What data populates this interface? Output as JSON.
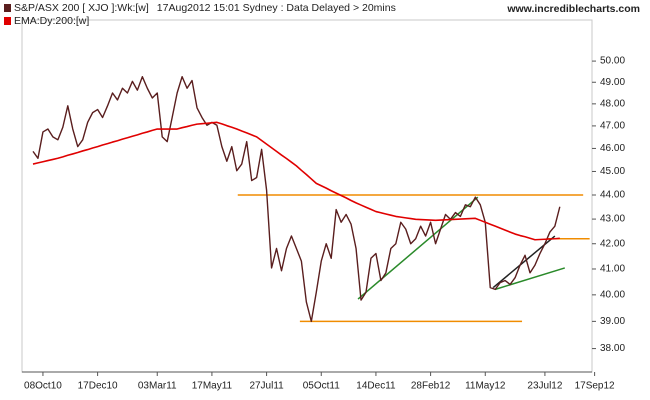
{
  "chart_data": {
    "type": "line",
    "subtitle": "17Aug2012 15:01 Sydney : Data Delayed > 20mins",
    "source": "www.incrediblecharts.com",
    "log_scale": true,
    "grid": false,
    "categories": [
      null,
      null,
      "08Oct10",
      null,
      null,
      null,
      null,
      null,
      null,
      null,
      null,
      null,
      null,
      "17Dec10",
      null,
      null,
      null,
      null,
      null,
      null,
      null,
      null,
      null,
      null,
      null,
      "03Mar11",
      null,
      null,
      null,
      null,
      null,
      null,
      null,
      null,
      null,
      null,
      "17May11",
      null,
      null,
      null,
      null,
      null,
      null,
      null,
      null,
      null,
      null,
      "27Jul11",
      null,
      null,
      null,
      null,
      null,
      null,
      null,
      null,
      null,
      null,
      "05Oct11",
      null,
      null,
      null,
      null,
      null,
      null,
      null,
      null,
      null,
      null,
      "14Dec11",
      null,
      null,
      null,
      null,
      null,
      null,
      null,
      null,
      null,
      null,
      "28Feb12",
      null,
      null,
      null,
      null,
      null,
      null,
      null,
      null,
      null,
      null,
      "11May12",
      null,
      null,
      null,
      null,
      null,
      null,
      null,
      null,
      null,
      null,
      null,
      "23Jul12",
      null,
      null,
      null,
      null,
      null,
      null,
      null,
      null,
      null,
      "17Sep12"
    ],
    "series": [
      {
        "name": "S&P/ASX 200 [ XJO ]:Wk:[w]",
        "color": "#5a1e1e",
        "values": [
          45.87,
          45.57,
          46.73,
          46.86,
          46.51,
          46.38,
          46.94,
          47.91,
          46.86,
          46.08,
          46.38,
          47.16,
          47.6,
          47.74,
          47.38,
          47.91,
          48.5,
          48.18,
          48.72,
          48.5,
          49.04,
          48.63,
          49.26,
          48.72,
          48.27,
          48.5,
          46.51,
          46.3,
          47.38,
          48.5,
          49.26,
          48.72,
          49.08,
          47.82,
          47.38,
          47.03,
          47.16,
          47.03,
          46.08,
          45.44,
          46.08,
          45.03,
          45.32,
          46.3,
          44.61,
          44.74,
          45.96,
          44.2,
          41.04,
          41.81,
          40.93,
          41.81,
          42.31,
          41.81,
          41.31,
          39.73,
          39.0,
          40.1,
          41.31,
          42.0,
          41.42,
          43.39,
          42.87,
          43.19,
          42.79,
          41.81,
          39.8,
          40.1,
          41.42,
          41.61,
          40.55,
          40.85,
          41.81,
          42.0,
          42.87,
          42.59,
          42.0,
          42.2,
          42.71,
          42.31,
          42.87,
          42.0,
          42.59,
          43.19,
          42.99,
          43.27,
          43.11,
          43.59,
          43.51,
          43.91,
          43.59,
          42.87,
          40.28,
          40.21,
          40.47,
          40.55,
          40.4,
          40.66,
          41.15,
          41.54,
          40.85,
          41.15,
          41.61,
          42.0,
          42.47,
          42.71,
          43.51,
          null,
          null,
          null,
          null,
          null,
          null,
          null
        ]
      },
      {
        "name": "EMA:Dy:200:[w]",
        "color": "#e00000",
        "values": [
          45.32,
          45.37,
          45.42,
          45.47,
          45.52,
          45.57,
          45.63,
          45.7,
          45.76,
          45.82,
          45.89,
          45.95,
          46.02,
          46.08,
          46.15,
          46.21,
          46.28,
          46.34,
          46.41,
          46.47,
          46.54,
          46.6,
          46.67,
          46.73,
          46.8,
          46.86,
          46.86,
          46.86,
          46.86,
          46.86,
          46.92,
          46.97,
          47.03,
          47.08,
          47.1,
          47.12,
          47.14,
          47.16,
          47.09,
          47.01,
          46.94,
          46.86,
          46.77,
          46.69,
          46.6,
          46.51,
          46.35,
          46.19,
          46.03,
          45.87,
          45.71,
          45.56,
          45.4,
          45.24,
          45.05,
          44.87,
          44.68,
          44.49,
          44.39,
          44.29,
          44.18,
          44.08,
          43.98,
          43.88,
          43.77,
          43.67,
          43.58,
          43.49,
          43.4,
          43.31,
          43.26,
          43.21,
          43.16,
          43.11,
          43.08,
          43.05,
          43.02,
          42.99,
          42.98,
          42.97,
          42.96,
          42.95,
          42.96,
          42.97,
          42.98,
          42.99,
          43.0,
          43.01,
          43.02,
          43.03,
          42.95,
          42.87,
          42.79,
          42.71,
          42.63,
          42.55,
          42.47,
          42.39,
          42.33,
          42.28,
          42.22,
          42.16,
          42.17,
          42.18,
          42.19,
          42.2,
          42.22,
          null,
          null,
          null,
          null,
          null,
          null,
          null
        ]
      }
    ],
    "lines": [
      {
        "color": "#f08c00",
        "start": [
          41.2,
          44.0
        ],
        "end": [
          110.7,
          44.0
        ]
      },
      {
        "color": "#f08c00",
        "start": [
          53.7,
          39.0
        ],
        "end": [
          98.4,
          39.0
        ]
      },
      {
        "color": "#f08c00",
        "start": [
          103.6,
          42.2
        ],
        "end": [
          112,
          42.2
        ]
      },
      {
        "color": "#2a8a2a",
        "start": [
          65.4,
          39.84
        ],
        "end": [
          89.5,
          43.91
        ]
      },
      {
        "color": "#2a8a2a",
        "start": [
          93,
          40.21
        ],
        "end": [
          107,
          41.04
        ]
      },
      {
        "color": "#222222",
        "start": [
          92.6,
          40.28
        ],
        "end": [
          105,
          42.31
        ]
      }
    ],
    "ylim": [
      37.16,
      52
    ],
    "yticks": [
      {
        "value": 38,
        "label": "38.00"
      },
      {
        "value": 39,
        "label": "39.00"
      },
      {
        "value": 40,
        "label": "40.00"
      },
      {
        "value": 41,
        "label": "41.00"
      },
      {
        "value": 42,
        "label": "42.00"
      },
      {
        "value": 43,
        "label": "43.00"
      },
      {
        "value": 44,
        "label": "44.00"
      },
      {
        "value": 45,
        "label": "45.00"
      },
      {
        "value": 46,
        "label": "46.00"
      },
      {
        "value": 47,
        "label": "47.00"
      },
      {
        "value": 48,
        "label": "48.00"
      },
      {
        "value": 49,
        "label": "49.00"
      },
      {
        "value": 50,
        "label": "50.00"
      }
    ]
  }
}
